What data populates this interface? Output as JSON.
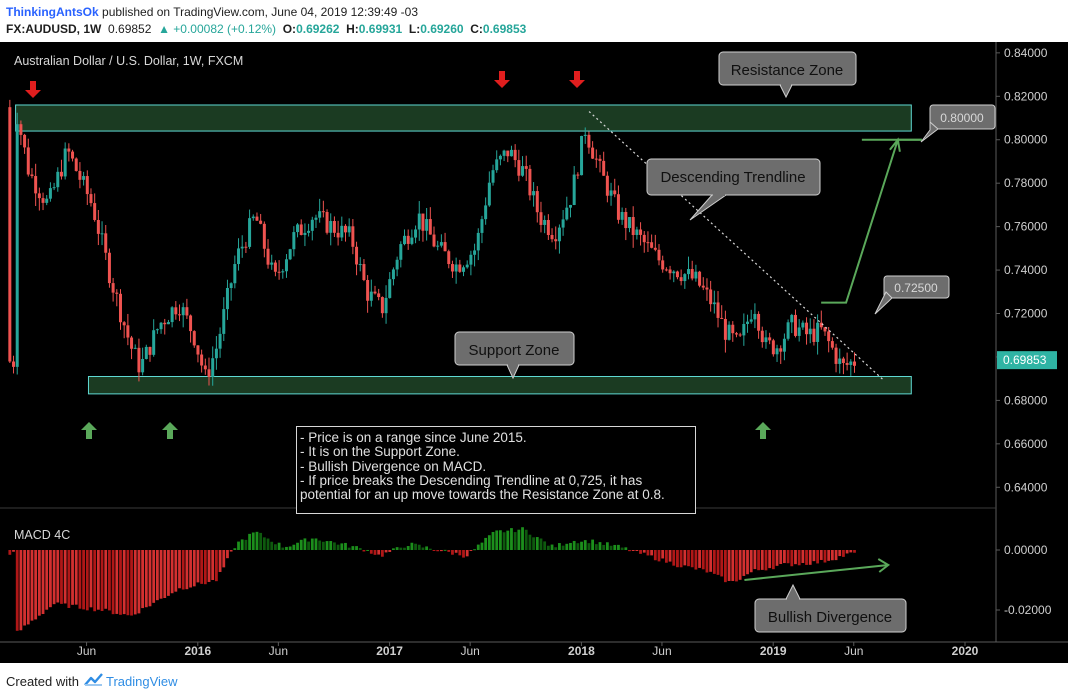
{
  "header": {
    "author": "ThinkingAntsOk",
    "published": "published on TradingView.com, June 04, 2019 12:39:49 -03",
    "symbol": "FX:AUDUSD, 1W",
    "price": "0.69852",
    "change": "▲ +0.00082 (+0.12%)",
    "o_label": "O:",
    "o_value": "0.69262",
    "h_label": "H:",
    "h_value": "0.69931",
    "l_label": "L:",
    "l_value": "0.69260",
    "c_label": "C:",
    "c_value": "0.69853"
  },
  "footer": {
    "created_with": "Created with",
    "brand": "TradingView"
  },
  "colors": {
    "background": "#000000",
    "bull_candle": "#26a69a",
    "bear_candle": "#ef5350",
    "zone_fill": "#1b3b22",
    "zone_border": "#5fd9d3",
    "arrow_down": "#e01e1e",
    "arrow_up": "#5aa85a",
    "macd_pos": "#1c8f1c",
    "macd_neg": "#b01717",
    "price_tag": "#2fb4a4"
  },
  "annotations": {
    "resistance": "Resistance Zone",
    "support": "Support Zone",
    "trendline": "Descending Trendline",
    "bullish_div": "Bullish Divergence",
    "target_high": "0.80000",
    "target_low": "0.72500",
    "notes": [
      "- Price is on a range since June 2015.",
      "- It is on the Support Zone.",
      "- Bullish Divergence on MACD.",
      "- If price breaks the Descending Trendline at 0,725, it has potential for an up move towards the Resistance Zone at 0.8."
    ]
  },
  "chart_data": [
    {
      "type": "candlestick",
      "title": "Australian Dollar / U.S. Dollar, 1W, FXCM",
      "ylim": [
        0.63,
        0.845
      ],
      "y_ticks": [
        "0.84000",
        "0.82000",
        "0.80000",
        "0.78000",
        "0.76000",
        "0.74000",
        "0.72000",
        "0.70000",
        "0.68000",
        "0.66000",
        "0.64000"
      ],
      "x_ticks": [
        "Jun",
        "2016",
        "Jun",
        "2017",
        "Jun",
        "2018",
        "Jun",
        "2019",
        "Jun",
        "2020"
      ],
      "x_tick_dates": [
        2015.42,
        2016.0,
        2016.42,
        2017.0,
        2017.42,
        2018.0,
        2018.42,
        2019.0,
        2019.42,
        2020.0
      ],
      "last_price": "0.69853",
      "path": [
        [
          2015.05,
          0.815
        ],
        [
          2015.12,
          0.785
        ],
        [
          2015.22,
          0.77
        ],
        [
          2015.32,
          0.795
        ],
        [
          2015.45,
          0.77
        ],
        [
          2015.55,
          0.735
        ],
        [
          2015.65,
          0.705
        ],
        [
          2015.7,
          0.695
        ],
        [
          2015.8,
          0.715
        ],
        [
          2015.9,
          0.725
        ],
        [
          2015.98,
          0.71
        ],
        [
          2016.04,
          0.69
        ],
        [
          2016.1,
          0.705
        ],
        [
          2016.2,
          0.745
        ],
        [
          2016.3,
          0.765
        ],
        [
          2016.4,
          0.735
        ],
        [
          2016.5,
          0.755
        ],
        [
          2016.6,
          0.765
        ],
        [
          2016.7,
          0.76
        ],
        [
          2016.8,
          0.755
        ],
        [
          2016.88,
          0.73
        ],
        [
          2016.96,
          0.722
        ],
        [
          2017.05,
          0.75
        ],
        [
          2017.15,
          0.765
        ],
        [
          2017.25,
          0.75
        ],
        [
          2017.35,
          0.742
        ],
        [
          2017.45,
          0.75
        ],
        [
          2017.53,
          0.785
        ],
        [
          2017.62,
          0.795
        ],
        [
          2017.7,
          0.785
        ],
        [
          2017.78,
          0.765
        ],
        [
          2017.86,
          0.757
        ],
        [
          2017.95,
          0.775
        ],
        [
          2018.02,
          0.805
        ],
        [
          2018.1,
          0.785
        ],
        [
          2018.2,
          0.765
        ],
        [
          2018.3,
          0.755
        ],
        [
          2018.4,
          0.745
        ],
        [
          2018.5,
          0.74
        ],
        [
          2018.6,
          0.735
        ],
        [
          2018.68,
          0.725
        ],
        [
          2018.75,
          0.712
        ],
        [
          2018.82,
          0.705
        ],
        [
          2018.9,
          0.725
        ],
        [
          2018.96,
          0.705
        ],
        [
          2019.02,
          0.705
        ],
        [
          2019.1,
          0.715
        ],
        [
          2019.18,
          0.71
        ],
        [
          2019.25,
          0.712
        ],
        [
          2019.3,
          0.705
        ],
        [
          2019.36,
          0.695
        ],
        [
          2019.42,
          0.698
        ]
      ],
      "resistance_zone": [
        0.804,
        0.816
      ],
      "support_zone": [
        0.683,
        0.691
      ],
      "trendline": [
        [
          2018.04,
          0.813
        ],
        [
          2019.58,
          0.689
        ]
      ],
      "projection": [
        [
          2019.25,
          0.725
        ],
        [
          2019.38,
          0.725
        ],
        [
          2019.65,
          0.8
        ]
      ]
    },
    {
      "type": "bar",
      "title": "MACD 4C",
      "ylim": [
        -0.03,
        0.012
      ],
      "y_ticks": [
        "0.00000",
        "-0.02000"
      ],
      "segments": [
        [
          2015.05,
          -0.028
        ],
        [
          2015.25,
          -0.018
        ],
        [
          2015.5,
          -0.02
        ],
        [
          2015.65,
          -0.022
        ],
        [
          2015.9,
          -0.013
        ],
        [
          2016.1,
          -0.01
        ],
        [
          2016.2,
          0.002
        ],
        [
          2016.3,
          0.006
        ],
        [
          2016.45,
          0.001
        ],
        [
          2016.6,
          0.004
        ],
        [
          2016.75,
          0.002
        ],
        [
          2016.88,
          0.0
        ],
        [
          2016.95,
          -0.002
        ],
        [
          2017.1,
          0.002
        ],
        [
          2017.25,
          0.0
        ],
        [
          2017.4,
          -0.002
        ],
        [
          2017.55,
          0.006
        ],
        [
          2017.7,
          0.007
        ],
        [
          2017.85,
          0.001
        ],
        [
          2017.95,
          0.003
        ],
        [
          2018.05,
          0.003
        ],
        [
          2018.2,
          0.001
        ],
        [
          2018.35,
          -0.002
        ],
        [
          2018.5,
          -0.005
        ],
        [
          2018.65,
          -0.007
        ],
        [
          2018.78,
          -0.011
        ],
        [
          2018.9,
          -0.007
        ],
        [
          2019.05,
          -0.005
        ],
        [
          2019.25,
          -0.004
        ],
        [
          2019.42,
          -0.001
        ]
      ],
      "divergence_line": [
        [
          2018.85,
          -0.01
        ],
        [
          2019.6,
          -0.005
        ]
      ]
    }
  ]
}
